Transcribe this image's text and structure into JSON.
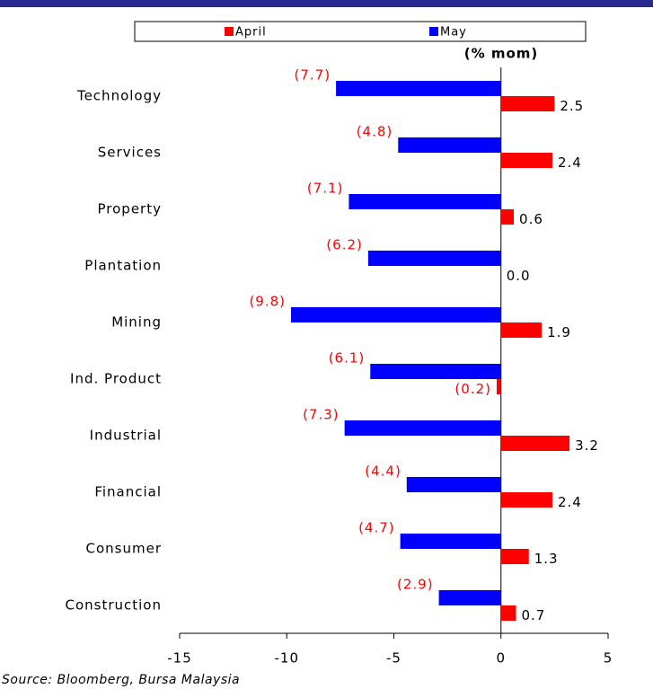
{
  "chart_data": {
    "type": "hbar",
    "annotation": "(% mom)",
    "source": "Source: Bloomberg, Bursa Malaysia",
    "categories": [
      "Technology",
      "Services",
      "Property",
      "Plantation",
      "Mining",
      "Ind. Product",
      "Industrial",
      "Financial",
      "Consumer",
      "Construction"
    ],
    "series": [
      {
        "name": "April",
        "color": "#ff0000",
        "values": [
          2.5,
          2.4,
          0.6,
          0.0,
          1.9,
          -0.2,
          3.2,
          2.4,
          1.3,
          0.7
        ],
        "value_labels": [
          "2.5",
          "2.4",
          "0.6",
          "0.0",
          "1.9",
          "(0.2)",
          "3.2",
          "2.4",
          "1.3",
          "0.7"
        ]
      },
      {
        "name": "May",
        "color": "#0000ff",
        "values": [
          -7.7,
          -4.8,
          -7.1,
          -6.2,
          -9.8,
          -6.1,
          -7.3,
          -4.4,
          -4.7,
          -2.9
        ],
        "value_labels": [
          "(7.7)",
          "(4.8)",
          "(7.1)",
          "(6.2)",
          "(9.8)",
          "(6.1)",
          "(7.3)",
          "(4.4)",
          "(4.7)",
          "(2.9)"
        ]
      }
    ],
    "xlim": [
      -15,
      5
    ],
    "xticks": [
      -15,
      -10,
      -5,
      0,
      5
    ]
  }
}
